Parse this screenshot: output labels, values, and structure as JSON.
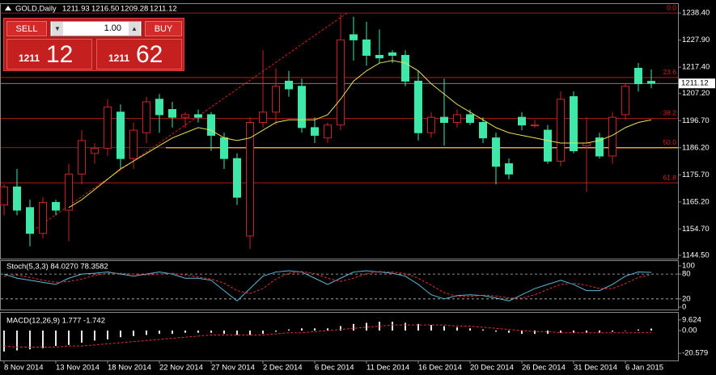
{
  "trade_panel": {
    "sell": "SELL",
    "buy": "BUY",
    "lot": "1.00",
    "bid": [
      "1211",
      "12"
    ],
    "ask": [
      "1211",
      "62"
    ]
  },
  "chart_data": [
    {
      "type": "candlestick",
      "title": "GOLD,Daily",
      "header_values": [
        "1211.93",
        "1216.50",
        "1209.28",
        "1211.12"
      ],
      "up_color": "#c8262a",
      "down_color": "#3de8a8",
      "ma_color": "#e8e05a",
      "categories": [
        "8 Nov 2014",
        null,
        null,
        null,
        "13 Nov 2014",
        null,
        null,
        null,
        "18 Nov 2014",
        null,
        null,
        null,
        "22 Nov 2014",
        null,
        null,
        null,
        "27 Nov 2014",
        null,
        null,
        null,
        "2 Dec 2014",
        null,
        null,
        null,
        "6 Dec 2014",
        null,
        null,
        null,
        "11 Dec 2014",
        null,
        null,
        null,
        "16 Dec 2014",
        null,
        null,
        null,
        "20 Dec 2014",
        null,
        null,
        null,
        "26 Dec 2014",
        null,
        null,
        null,
        "31 Dec 2014",
        null,
        null,
        null,
        "6 Jan 2015",
        null,
        null
      ],
      "ohlc": [
        [
          1164,
          1172,
          1160,
          1171
        ],
        [
          1171,
          1178,
          1160,
          1162
        ],
        [
          1163,
          1166,
          1148,
          1153
        ],
        [
          1153,
          1167,
          1151,
          1165
        ],
        [
          1165,
          1166,
          1160,
          1162
        ],
        [
          1162,
          1180,
          1150,
          1176
        ],
        [
          1176,
          1193,
          1172,
          1189
        ],
        [
          1184,
          1188,
          1180,
          1186
        ],
        [
          1186,
          1205,
          1183,
          1202
        ],
        [
          1200,
          1203,
          1178,
          1182
        ],
        [
          1182,
          1196,
          1178,
          1193
        ],
        [
          1192,
          1206,
          1188,
          1204
        ],
        [
          1205,
          1207,
          1192,
          1199
        ],
        [
          1201,
          1204,
          1194,
          1198
        ],
        [
          1198,
          1200,
          1194,
          1199
        ],
        [
          1199,
          1201,
          1196,
          1198
        ],
        [
          1199,
          1200,
          1185,
          1191
        ],
        [
          1190,
          1192,
          1178,
          1182
        ],
        [
          1182,
          1184,
          1164,
          1167
        ],
        [
          1152,
          1198,
          1147,
          1196
        ],
        [
          1196,
          1224,
          1194,
          1200
        ],
        [
          1200,
          1217,
          1195,
          1210
        ],
        [
          1212,
          1216,
          1206,
          1209
        ],
        [
          1210,
          1213,
          1192,
          1194
        ],
        [
          1194,
          1198,
          1188,
          1191
        ],
        [
          1190,
          1196,
          1188,
          1195
        ],
        [
          1195,
          1238,
          1193,
          1228
        ],
        [
          1230,
          1237,
          1220,
          1228
        ],
        [
          1228,
          1235,
          1218,
          1222
        ],
        [
          1222,
          1232,
          1219,
          1221
        ],
        [
          1223,
          1224,
          1219,
          1222
        ],
        [
          1222,
          1224,
          1210,
          1212
        ],
        [
          1212,
          1216,
          1189,
          1192
        ],
        [
          1192,
          1200,
          1190,
          1198
        ],
        [
          1198,
          1213,
          1187,
          1196
        ],
        [
          1196,
          1201,
          1194,
          1199
        ],
        [
          1199,
          1201,
          1195,
          1196
        ],
        [
          1196,
          1198,
          1188,
          1190
        ],
        [
          1190,
          1192,
          1172,
          1179
        ],
        [
          1180,
          1182,
          1174,
          1176
        ],
        [
          1198,
          1200,
          1193,
          1195
        ],
        [
          1195,
          1197,
          1194,
          1195
        ],
        [
          1193,
          1195,
          1180,
          1181
        ],
        [
          1181,
          1208,
          1179,
          1205
        ],
        [
          1206,
          1208,
          1184,
          1185
        ],
        [
          1187,
          1198,
          1169,
          1188
        ],
        [
          1190,
          1192,
          1182,
          1183
        ],
        [
          1183,
          1200,
          1180,
          1198
        ],
        [
          1199,
          1211,
          1197,
          1210
        ],
        [
          1217,
          1219,
          1208,
          1211
        ],
        [
          1211.93,
          1216.5,
          1209.28,
          1211.12
        ]
      ],
      "ma": [
        null,
        null,
        null,
        null,
        null,
        1163,
        1166,
        1170,
        1174,
        1178,
        1181,
        1184,
        1187,
        1190,
        1192,
        1194,
        1193,
        1190,
        1189,
        1190,
        1193,
        1196,
        1197,
        1197,
        1197,
        1199,
        1205,
        1212,
        1216,
        1219,
        1220,
        1219,
        1216,
        1211,
        1207,
        1203,
        1200,
        1197,
        1194,
        1192,
        1191,
        1190,
        1189,
        1188,
        1188,
        1188,
        1189,
        1191,
        1194,
        1196,
        1197
      ],
      "fibo_levels": [
        {
          "label": "0.0",
          "price": 1238.4
        },
        {
          "label": "23.6",
          "price": 1213.4
        },
        {
          "label": "38.2",
          "price": 1197.6
        },
        {
          "label": "50.0",
          "price": 1186.2
        },
        {
          "label": "61.8",
          "price": 1172.6
        }
      ],
      "fibo_color": "#d42020",
      "trendline": [
        [
          2.2,
          1154
        ],
        [
          26.5,
          1238.4
        ]
      ],
      "support_line": {
        "price": 1186.2,
        "from": 12.5,
        "color": "#f0a030"
      },
      "ylim": [
        1142.9,
        1242.2
      ],
      "yticks": [
        {
          "value": 1238.4,
          "label": "1238.40"
        },
        {
          "value": 1227.9,
          "label": "1227.90"
        },
        {
          "value": 1217.4,
          "label": "1217.40"
        },
        {
          "value": 1207.2,
          "label": "1207.20"
        },
        {
          "value": 1196.7,
          "label": "1196.70"
        },
        {
          "value": 1186.2,
          "label": "1186.20"
        },
        {
          "value": 1175.7,
          "label": "1175.70"
        },
        {
          "value": 1165.2,
          "label": "1165.20"
        },
        {
          "value": 1154.7,
          "label": "1154.70"
        },
        {
          "value": 1144.5,
          "label": "1144.50"
        }
      ]
    },
    {
      "type": "line",
      "title": "Stoch(5,3,3) 84.0270 78.3582",
      "ylim": [
        -7.7,
        111.5
      ],
      "yticks": [
        100,
        80,
        20,
        0
      ],
      "levels": [
        80,
        20
      ],
      "series": [
        {
          "color": "#5bb8d8",
          "dash": false,
          "values": [
            80,
            70,
            65,
            60,
            55,
            70,
            80,
            82,
            85,
            80,
            75,
            80,
            85,
            80,
            70,
            70,
            65,
            40,
            15,
            45,
            75,
            85,
            88,
            85,
            70,
            55,
            70,
            85,
            88,
            85,
            82,
            75,
            55,
            30,
            20,
            28,
            30,
            28,
            22,
            15,
            30,
            45,
            55,
            65,
            55,
            40,
            40,
            55,
            75,
            85,
            84.027
          ]
        },
        {
          "color": "#e03030",
          "dash": true,
          "values": [
            75,
            78,
            72,
            65,
            60,
            62,
            68,
            77,
            82,
            82,
            80,
            78,
            80,
            82,
            78,
            73,
            68,
            58,
            40,
            33,
            45,
            68,
            82,
            86,
            81,
            70,
            62,
            70,
            81,
            86,
            85,
            81,
            70,
            53,
            35,
            26,
            26,
            29,
            27,
            22,
            22,
            30,
            43,
            55,
            58,
            53,
            45,
            45,
            57,
            72,
            78.3582
          ]
        }
      ]
    },
    {
      "type": "macd",
      "title": "MACD(12,26,9) 1.777 -1.742",
      "ylim": [
        -27.8,
        16.1
      ],
      "yticks": [
        9.624,
        {
          "value": 0,
          "label": "0.00"
        },
        -20.579
      ],
      "series": [
        {
          "color": "#e8e8e8",
          "values": [
            -19,
            -18,
            -17,
            -16,
            -14,
            -13,
            -11,
            -9,
            -8,
            -6,
            -5,
            -4,
            -3,
            -3,
            -2,
            -2,
            -2,
            -3,
            -4,
            -4,
            -3,
            -1,
            1,
            2,
            2,
            2,
            4,
            6,
            7,
            8,
            8,
            7,
            6,
            5,
            4,
            3,
            2,
            1,
            -1,
            -2,
            -3,
            -3,
            -3,
            -2,
            -2,
            -2,
            -2,
            -1,
            0,
            1,
            1.777
          ]
        },
        {
          "color": "#e03030",
          "dash": true,
          "values": [
            -14,
            -15,
            -15,
            -15,
            -15,
            -14,
            -14,
            -13,
            -12,
            -11,
            -10,
            -9,
            -8,
            -7,
            -6,
            -5,
            -4,
            -4,
            -4,
            -4,
            -4,
            -3,
            -2,
            -2,
            -1,
            0,
            1,
            2,
            3,
            4,
            5,
            5,
            5,
            5,
            5,
            4,
            4,
            3,
            2,
            1,
            0,
            -1,
            -1,
            -2,
            -2,
            -2,
            -2,
            -2,
            -2,
            -2,
            -1.742
          ]
        }
      ]
    }
  ]
}
